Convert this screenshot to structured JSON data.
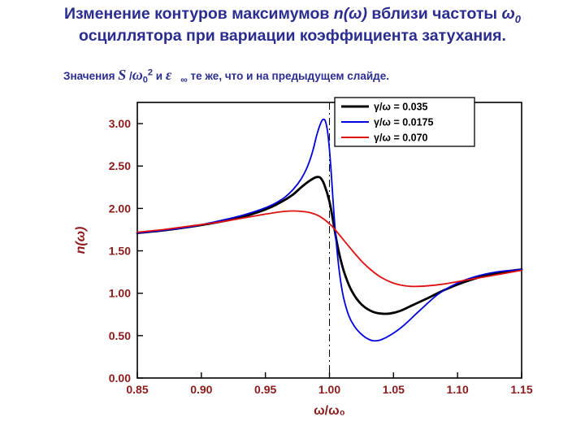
{
  "title": {
    "part1": "Изменение контуров максимумов ",
    "n_omega": "n(ω)",
    "part2": " вблизи частоты ",
    "omega": "ω",
    "omega_sub": "0",
    "line2": "осциллятора при вариации коэффициента затухания."
  },
  "subtitle": {
    "lead": "Значения ",
    "S": "S",
    "slash": " /",
    "omega": "ω",
    "sub0": "0",
    "sup2": "2",
    "and_word": " и ",
    "epsilon": "ε",
    "infinity": "∞",
    "tail": " те же, что и на предыдущем слайде."
  },
  "colors": {
    "title_text": "#2a2d8f",
    "tick_labels": "#8b1a1a",
    "axis": "#000000",
    "background": "#ffffff"
  },
  "chart_data": {
    "type": "line",
    "title": "",
    "xlabel": "ω/ω₀",
    "ylabel": "n(ω)",
    "xlim": [
      0.85,
      1.15
    ],
    "ylim": [
      0,
      3.25
    ],
    "xticks": [
      0.85,
      0.9,
      0.95,
      1.0,
      1.05,
      1.1,
      1.15
    ],
    "yticks": [
      0.0,
      0.5,
      1.0,
      1.5,
      2.0,
      2.5,
      3.0
    ],
    "grid": false,
    "legend_position": "top-right-inside",
    "annotations": [
      {
        "type": "vline",
        "x": 1.0,
        "style": "dash-dot",
        "color": "#000000"
      }
    ],
    "series": [
      {
        "name": "γ/ω = 0.035",
        "color": "#000000",
        "width": 2.8,
        "x": [
          0.85,
          0.87,
          0.89,
          0.91,
          0.93,
          0.945,
          0.955,
          0.965,
          0.972,
          0.978,
          0.983,
          0.987,
          0.99,
          0.993,
          0.996,
          1.0,
          1.003,
          1.006,
          1.01,
          1.014,
          1.018,
          1.023,
          1.028,
          1.034,
          1.04,
          1.047,
          1.055,
          1.065,
          1.075,
          1.09,
          1.105,
          1.12,
          1.135,
          1.15
        ],
        "y": [
          1.71,
          1.74,
          1.78,
          1.83,
          1.89,
          1.96,
          2.02,
          2.1,
          2.17,
          2.25,
          2.31,
          2.35,
          2.37,
          2.36,
          2.28,
          2.08,
          1.84,
          1.58,
          1.32,
          1.14,
          1.01,
          0.9,
          0.83,
          0.78,
          0.76,
          0.76,
          0.79,
          0.86,
          0.93,
          1.04,
          1.13,
          1.2,
          1.25,
          1.28
        ]
      },
      {
        "name": "γ/ω = 0.0175",
        "color": "#0000dd",
        "width": 1.8,
        "x": [
          0.85,
          0.87,
          0.89,
          0.91,
          0.93,
          0.945,
          0.955,
          0.965,
          0.972,
          0.978,
          0.983,
          0.987,
          0.99,
          0.993,
          0.995,
          0.997,
          0.999,
          1.001,
          1.003,
          1.005,
          1.008,
          1.011,
          1.015,
          1.019,
          1.024,
          1.029,
          1.034,
          1.04,
          1.048,
          1.058,
          1.07,
          1.085,
          1.1,
          1.115,
          1.13,
          1.15
        ],
        "y": [
          1.71,
          1.74,
          1.78,
          1.84,
          1.91,
          1.98,
          2.04,
          2.13,
          2.23,
          2.35,
          2.5,
          2.68,
          2.86,
          3.0,
          3.05,
          3.02,
          2.85,
          2.5,
          2.05,
          1.65,
          1.22,
          0.95,
          0.74,
          0.62,
          0.53,
          0.47,
          0.44,
          0.45,
          0.51,
          0.62,
          0.79,
          0.99,
          1.12,
          1.2,
          1.25,
          1.28
        ]
      },
      {
        "name": "γ/ω = 0.070",
        "color": "#e01010",
        "width": 1.8,
        "x": [
          0.85,
          0.87,
          0.89,
          0.91,
          0.93,
          0.945,
          0.955,
          0.965,
          0.972,
          0.978,
          0.985,
          0.992,
          1.0,
          1.006,
          1.012,
          1.018,
          1.025,
          1.032,
          1.04,
          1.048,
          1.056,
          1.064,
          1.075,
          1.09,
          1.105,
          1.12,
          1.135,
          1.15
        ],
        "y": [
          1.72,
          1.75,
          1.79,
          1.83,
          1.88,
          1.92,
          1.945,
          1.965,
          1.97,
          1.965,
          1.95,
          1.91,
          1.82,
          1.72,
          1.61,
          1.5,
          1.38,
          1.28,
          1.19,
          1.13,
          1.095,
          1.08,
          1.085,
          1.11,
          1.15,
          1.19,
          1.23,
          1.27
        ]
      }
    ]
  }
}
